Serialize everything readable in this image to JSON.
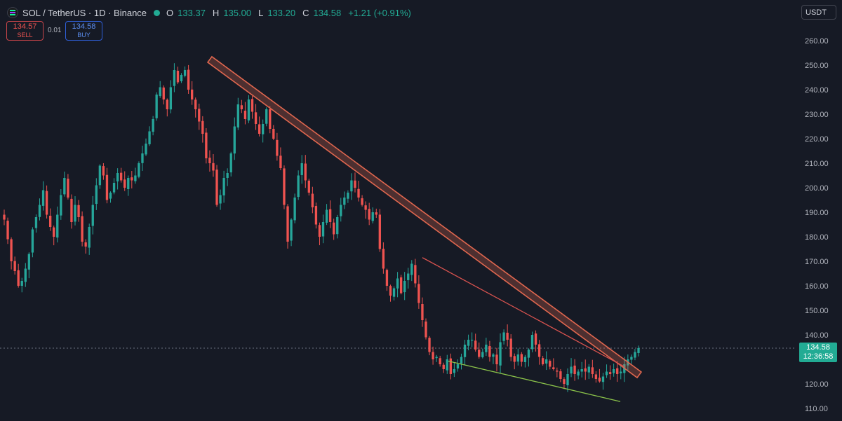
{
  "header": {
    "symbol_line": "SOL / TetherUS · 1D · Binance",
    "open_label": "O",
    "open": "133.37",
    "high_label": "H",
    "high": "135.00",
    "low_label": "L",
    "low": "133.20",
    "close_label": "C",
    "close": "134.58",
    "change": "+1.21 (+0.91%)"
  },
  "trade": {
    "sell_price": "134.57",
    "sell_label": "SELL",
    "spread": "0.01",
    "buy_price": "134.58",
    "buy_label": "BUY"
  },
  "currency": "USDT",
  "last_price": {
    "price": "134.58",
    "countdown": "12:36:58"
  },
  "colors": {
    "background": "#161a25",
    "up": "#26a69a",
    "down": "#ef5350",
    "wedge_upper": "#d9534f",
    "wedge_lower": "#8bc34a",
    "channel": "#e0674f"
  },
  "chart_data": {
    "type": "candlestick",
    "title": "",
    "xlabel": "",
    "ylabel": "",
    "ylim": [
      105,
      267
    ],
    "yticks": [
      "260.00",
      "250.00",
      "240.00",
      "230.00",
      "220.00",
      "210.00",
      "200.00",
      "190.00",
      "180.00",
      "170.00",
      "160.00",
      "150.00",
      "140.00",
      "130.00",
      "120.00",
      "110.00"
    ],
    "grid": false,
    "close_path": [
      187,
      179,
      170,
      166,
      160,
      162,
      167,
      173,
      183,
      188,
      193,
      199,
      189,
      184,
      180,
      189,
      197,
      204,
      196,
      186,
      193,
      188,
      178,
      176,
      184,
      193,
      201,
      209,
      205,
      195,
      198,
      202,
      206,
      203,
      200,
      204,
      203,
      205,
      210,
      214,
      218,
      223,
      228,
      238,
      241,
      236,
      232,
      241,
      248,
      243,
      246,
      248,
      240,
      236,
      232,
      227,
      222,
      212,
      210,
      207,
      193,
      197,
      204,
      206,
      214,
      225,
      234,
      232,
      228,
      236,
      231,
      226,
      222,
      226,
      232,
      224,
      220,
      213,
      208,
      193,
      178,
      187,
      196,
      205,
      210,
      203,
      198,
      192,
      185,
      180,
      186,
      191,
      186,
      181,
      188,
      193,
      196,
      198,
      203,
      200,
      196,
      193,
      191,
      187,
      190,
      189,
      175,
      167,
      160,
      156,
      159,
      163,
      157,
      162,
      165,
      169,
      161,
      153,
      146,
      139,
      133,
      130,
      131,
      128,
      126,
      130,
      124,
      126,
      128,
      131,
      136,
      138,
      138,
      134,
      131,
      133,
      136,
      131,
      132,
      128,
      137,
      141,
      138,
      131,
      129,
      132,
      129,
      131,
      134,
      140,
      136,
      131,
      128,
      130,
      127,
      126,
      125,
      122,
      120,
      124,
      127,
      124,
      125,
      126,
      125,
      127,
      124,
      122,
      121,
      123,
      125,
      124,
      126,
      124,
      125,
      128,
      130,
      131,
      133,
      134.58
    ]
  },
  "annotations": {
    "downtrend_channel": {
      "from": [
        299,
        252.3
      ],
      "to": [
        911,
        123.7
      ]
    },
    "wedge_upper": {
      "from": [
        602,
        171.5
      ],
      "to": [
        890,
        127
      ]
    },
    "wedge_lower": {
      "from": [
        639,
        129.3
      ],
      "to": [
        884,
        112.8
      ]
    }
  }
}
